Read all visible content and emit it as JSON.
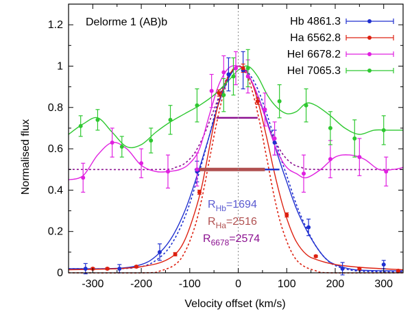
{
  "chart_data": {
    "type": "line",
    "title": "Delorme 1 (AB)b",
    "xlabel": "Velocity offset (km/s)",
    "ylabel": "Normalised flux",
    "xlim": [
      -350,
      340
    ],
    "ylim": [
      0,
      1.3
    ],
    "x_ticks": [
      -300,
      -200,
      -100,
      0,
      100,
      200,
      300
    ],
    "x_tick_labels": [
      "-300",
      "-200",
      "-100",
      "0",
      "100",
      "200",
      "300"
    ],
    "y_ticks": [
      0,
      0.2,
      0.4,
      0.6,
      0.8,
      1,
      1.2
    ],
    "y_tick_labels": [
      "0",
      "0.2",
      "0.4",
      "0.6",
      "0.8",
      "1",
      "1.2"
    ],
    "grid": false,
    "legend_position": "top-right",
    "zero_line": true,
    "series": [
      {
        "name": "Hb 4861.3",
        "color": "#1f2fcf",
        "points": [
          [
            -315,
            0.02
          ],
          [
            -245,
            0.02
          ],
          [
            -162,
            0.1
          ],
          [
            -85,
            0.49
          ],
          [
            -20,
            0.96
          ],
          [
            10,
            0.98
          ],
          [
            75,
            0.63
          ],
          [
            145,
            0.22
          ],
          [
            215,
            0.02
          ],
          [
            300,
            0.04
          ]
        ],
        "errors": [
          0.025,
          0.02,
          0.04,
          0.05,
          0.08,
          0.09,
          0.06,
          0.04,
          0.03,
          0.02
        ],
        "fit": [
          [
            -350,
            0.02
          ],
          [
            -250,
            0.022
          ],
          [
            -200,
            0.04
          ],
          [
            -170,
            0.08
          ],
          [
            -140,
            0.16
          ],
          [
            -110,
            0.3
          ],
          [
            -85,
            0.47
          ],
          [
            -60,
            0.66
          ],
          [
            -40,
            0.82
          ],
          [
            -20,
            0.94
          ],
          [
            0,
            1.0
          ],
          [
            20,
            0.96
          ],
          [
            40,
            0.86
          ],
          [
            60,
            0.73
          ],
          [
            80,
            0.58
          ],
          [
            100,
            0.44
          ],
          [
            120,
            0.31
          ],
          [
            140,
            0.21
          ],
          [
            160,
            0.13
          ],
          [
            180,
            0.07
          ],
          [
            200,
            0.04
          ],
          [
            240,
            0.015
          ],
          [
            300,
            0.01
          ],
          [
            340,
            0.01
          ]
        ]
      },
      {
        "name": "Ha 6562.8",
        "color": "#dd2010",
        "points": [
          [
            -300,
            0.02
          ],
          [
            -270,
            0.02
          ],
          [
            -210,
            0.03
          ],
          [
            -130,
            0.09
          ],
          [
            -80,
            0.39
          ],
          [
            -40,
            0.87
          ],
          [
            10,
            0.99
          ],
          [
            40,
            0.83
          ],
          [
            100,
            0.28
          ],
          [
            160,
            0.08
          ],
          [
            250,
            0.02
          ],
          [
            330,
            0.01
          ]
        ],
        "errors": [
          0.005,
          0.005,
          0.005,
          0.008,
          0.01,
          0.015,
          0.02,
          0.015,
          0.01,
          0.005,
          0.005,
          0.005
        ],
        "fit": [
          [
            -350,
            0.015
          ],
          [
            -250,
            0.02
          ],
          [
            -200,
            0.03
          ],
          [
            -160,
            0.05
          ],
          [
            -130,
            0.09
          ],
          [
            -110,
            0.16
          ],
          [
            -90,
            0.29
          ],
          [
            -75,
            0.42
          ],
          [
            -60,
            0.6
          ],
          [
            -45,
            0.78
          ],
          [
            -30,
            0.9
          ],
          [
            -15,
            0.97
          ],
          [
            0,
            1.0
          ],
          [
            15,
            0.98
          ],
          [
            30,
            0.91
          ],
          [
            45,
            0.79
          ],
          [
            60,
            0.64
          ],
          [
            75,
            0.48
          ],
          [
            90,
            0.34
          ],
          [
            105,
            0.23
          ],
          [
            120,
            0.15
          ],
          [
            140,
            0.09
          ],
          [
            160,
            0.065
          ],
          [
            200,
            0.04
          ],
          [
            260,
            0.025
          ],
          [
            340,
            0.015
          ]
        ]
      },
      {
        "name": "HeI 6678.2",
        "color": "#e020e0",
        "points": [
          [
            -320,
            0.46
          ],
          [
            -260,
            0.63
          ],
          [
            -200,
            0.53
          ],
          [
            -145,
            0.49
          ],
          [
            -85,
            0.5
          ],
          [
            -55,
            0.88
          ],
          [
            -30,
            0.97
          ],
          [
            -5,
            0.99
          ],
          [
            20,
            0.95
          ],
          [
            55,
            0.79
          ],
          [
            75,
            0.65
          ],
          [
            135,
            0.48
          ],
          [
            190,
            0.55
          ],
          [
            250,
            0.56
          ],
          [
            305,
            0.49
          ]
        ],
        "errors": [
          0.07,
          0.07,
          0.07,
          0.08,
          0.08,
          0.08,
          0.08,
          0.08,
          0.08,
          0.08,
          0.08,
          0.09,
          0.09,
          0.09,
          0.07
        ],
        "fit": [
          [
            -350,
            0.45
          ],
          [
            -320,
            0.47
          ],
          [
            -290,
            0.57
          ],
          [
            -260,
            0.63
          ],
          [
            -230,
            0.6
          ],
          [
            -200,
            0.52
          ],
          [
            -170,
            0.49
          ],
          [
            -145,
            0.49
          ],
          [
            -120,
            0.5
          ],
          [
            -100,
            0.53
          ],
          [
            -80,
            0.6
          ],
          [
            -60,
            0.76
          ],
          [
            -40,
            0.91
          ],
          [
            -20,
            0.99
          ],
          [
            0,
            1.0
          ],
          [
            20,
            0.96
          ],
          [
            40,
            0.86
          ],
          [
            60,
            0.72
          ],
          [
            80,
            0.59
          ],
          [
            100,
            0.51
          ],
          [
            120,
            0.48
          ],
          [
            140,
            0.46
          ],
          [
            170,
            0.5
          ],
          [
            200,
            0.56
          ],
          [
            230,
            0.57
          ],
          [
            260,
            0.55
          ],
          [
            290,
            0.5
          ],
          [
            320,
            0.5
          ],
          [
            340,
            0.51
          ]
        ]
      },
      {
        "name": "HeI 7065.3",
        "color": "#2ec830",
        "points": [
          [
            -325,
            0.71
          ],
          [
            -290,
            0.74
          ],
          [
            -240,
            0.61
          ],
          [
            -180,
            0.64
          ],
          [
            -140,
            0.74
          ],
          [
            -85,
            0.81
          ],
          [
            -30,
            0.86
          ],
          [
            -10,
            0.95
          ],
          [
            20,
            0.99
          ],
          [
            85,
            0.83
          ],
          [
            140,
            0.81
          ],
          [
            190,
            0.7
          ],
          [
            240,
            0.65
          ],
          [
            300,
            0.69
          ]
        ],
        "errors": [
          0.05,
          0.05,
          0.05,
          0.06,
          0.07,
          0.08,
          0.08,
          0.09,
          0.09,
          0.08,
          0.08,
          0.08,
          0.09,
          0.07
        ],
        "fit": [
          [
            -350,
            0.67
          ],
          [
            -320,
            0.72
          ],
          [
            -290,
            0.75
          ],
          [
            -260,
            0.68
          ],
          [
            -230,
            0.61
          ],
          [
            -200,
            0.62
          ],
          [
            -170,
            0.68
          ],
          [
            -140,
            0.73
          ],
          [
            -110,
            0.77
          ],
          [
            -80,
            0.81
          ],
          [
            -50,
            0.86
          ],
          [
            -20,
            0.93
          ],
          [
            0,
            0.98
          ],
          [
            20,
            1.0
          ],
          [
            40,
            0.95
          ],
          [
            60,
            0.86
          ],
          [
            80,
            0.8
          ],
          [
            100,
            0.77
          ],
          [
            120,
            0.78
          ],
          [
            140,
            0.82
          ],
          [
            160,
            0.81
          ],
          [
            190,
            0.76
          ],
          [
            220,
            0.7
          ],
          [
            250,
            0.67
          ],
          [
            280,
            0.69
          ],
          [
            310,
            0.69
          ],
          [
            340,
            0.69
          ]
        ]
      }
    ],
    "reference_curves": [
      {
        "color": "#1f2fcf",
        "points": [
          [
            -350,
            0.02
          ],
          [
            -250,
            0.02
          ],
          [
            -200,
            0.03
          ],
          [
            -170,
            0.06
          ],
          [
            -140,
            0.13
          ],
          [
            -110,
            0.27
          ],
          [
            -85,
            0.45
          ],
          [
            -60,
            0.66
          ],
          [
            -40,
            0.84
          ],
          [
            -20,
            0.95
          ],
          [
            0,
            1.0
          ],
          [
            20,
            0.97
          ],
          [
            40,
            0.89
          ],
          [
            60,
            0.76
          ],
          [
            80,
            0.61
          ],
          [
            100,
            0.47
          ],
          [
            120,
            0.33
          ],
          [
            140,
            0.22
          ],
          [
            160,
            0.13
          ],
          [
            180,
            0.07
          ],
          [
            200,
            0.035
          ],
          [
            240,
            0.01
          ],
          [
            300,
            0.005
          ],
          [
            340,
            0.005
          ]
        ]
      },
      {
        "color": "#dd2010",
        "points": [
          [
            -350,
            0.0
          ],
          [
            -190,
            0.0
          ],
          [
            -160,
            0.01
          ],
          [
            -130,
            0.04
          ],
          [
            -110,
            0.1
          ],
          [
            -90,
            0.22
          ],
          [
            -75,
            0.36
          ],
          [
            -60,
            0.54
          ],
          [
            -45,
            0.72
          ],
          [
            -30,
            0.87
          ],
          [
            -15,
            0.97
          ],
          [
            0,
            1.0
          ],
          [
            15,
            0.97
          ],
          [
            30,
            0.87
          ],
          [
            45,
            0.72
          ],
          [
            60,
            0.54
          ],
          [
            75,
            0.36
          ],
          [
            90,
            0.22
          ],
          [
            110,
            0.1
          ],
          [
            130,
            0.04
          ],
          [
            160,
            0.01
          ],
          [
            190,
            0.0
          ],
          [
            340,
            0.0
          ]
        ]
      },
      {
        "color": "#8b1090",
        "points": [
          [
            -350,
            0.5
          ],
          [
            -160,
            0.5
          ],
          [
            -130,
            0.51
          ],
          [
            -110,
            0.53
          ],
          [
            -90,
            0.58
          ],
          [
            -70,
            0.67
          ],
          [
            -50,
            0.79
          ],
          [
            -30,
            0.91
          ],
          [
            -15,
            0.97
          ],
          [
            0,
            1.0
          ],
          [
            15,
            0.97
          ],
          [
            30,
            0.91
          ],
          [
            50,
            0.79
          ],
          [
            70,
            0.67
          ],
          [
            90,
            0.58
          ],
          [
            110,
            0.53
          ],
          [
            130,
            0.51
          ],
          [
            160,
            0.5
          ],
          [
            340,
            0.5
          ]
        ]
      }
    ],
    "width_bars": [
      {
        "color": "#8b1090",
        "y": 0.75,
        "x1": -45,
        "x2": 40
      },
      {
        "color": "#1f2fcf",
        "y": 0.5,
        "x1": -90,
        "x2": 85
      },
      {
        "color": "#b05050",
        "y": 0.5,
        "x1": -80,
        "x2": 55
      }
    ],
    "annotations": [
      {
        "label": "R",
        "subscript": "Hb",
        "value": "=1694",
        "color": "#5a5ad0"
      },
      {
        "label": "R",
        "subscript": "Ha",
        "value": "=2516",
        "color": "#b05050"
      },
      {
        "label": "R",
        "subscript": "6678",
        "value": "=2574",
        "color": "#8b1090"
      }
    ]
  }
}
